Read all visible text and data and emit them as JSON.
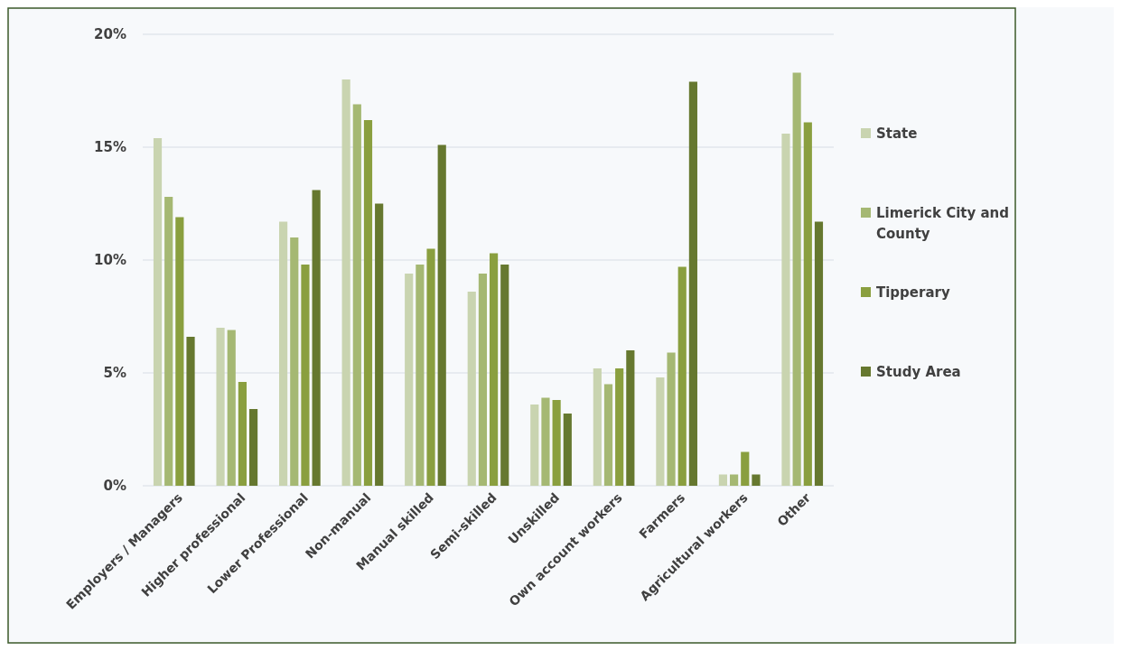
{
  "chart_data": {
    "type": "bar",
    "categories": [
      "Employers / Managers",
      "Higher professional",
      "Lower Professional",
      "Non-manual",
      "Manual skilled",
      "Semi-skilled",
      "Unskilled",
      "Own account workers",
      "Farmers",
      "Agricultural workers",
      "Other"
    ],
    "series": [
      {
        "name": "State",
        "color": "#c9d4b0",
        "values": [
          15.4,
          7.0,
          11.7,
          18.0,
          9.4,
          8.6,
          3.6,
          5.2,
          4.8,
          0.5,
          15.6
        ]
      },
      {
        "name": "Limerick City and County",
        "color": "#a5b873",
        "values": [
          12.8,
          6.9,
          11.0,
          16.9,
          9.8,
          9.4,
          3.9,
          4.5,
          5.9,
          0.5,
          18.3
        ]
      },
      {
        "name": "Tipperary",
        "color": "#8a9f3f",
        "values": [
          11.9,
          4.6,
          9.8,
          16.2,
          10.5,
          10.3,
          3.8,
          5.2,
          9.7,
          1.5,
          16.1
        ]
      },
      {
        "name": "Study Area",
        "color": "#66782f",
        "values": [
          6.6,
          3.4,
          13.1,
          12.5,
          15.1,
          9.8,
          3.2,
          6.0,
          17.9,
          0.5,
          11.7
        ]
      }
    ],
    "ylim": [
      0,
      20
    ],
    "yticks": [
      {
        "value": 0,
        "label": "0%"
      },
      {
        "value": 5,
        "label": "5%"
      },
      {
        "value": 10,
        "label": "10%"
      },
      {
        "value": 15,
        "label": "15%"
      },
      {
        "value": 20,
        "label": "20%"
      }
    ],
    "grid": "y",
    "legend": "right"
  }
}
